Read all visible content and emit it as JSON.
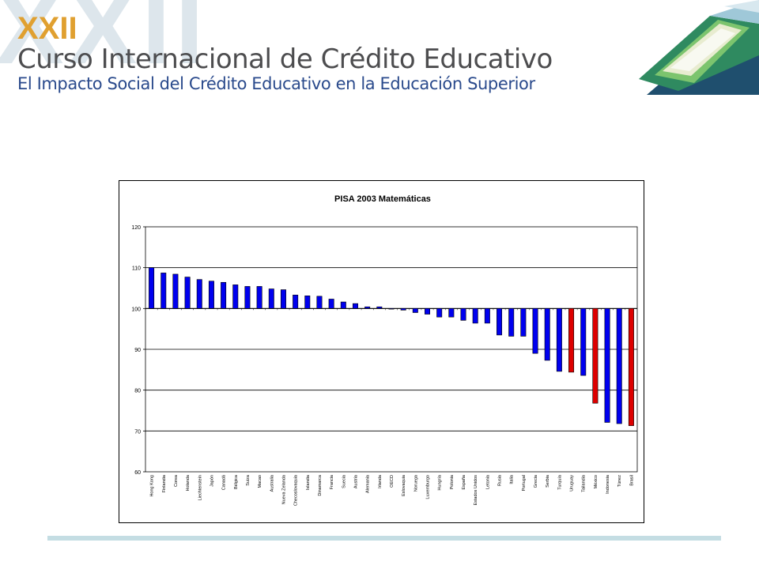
{
  "header": {
    "numeral": "XXII",
    "line1": "Curso Internacional de Crédito Educativo",
    "line2": "El Impacto Social del Crédito Educativo en la Educación Superior"
  },
  "colors": {
    "bar_default": "#0000ee",
    "bar_highlight": "#dd0000",
    "numeral": "#e0a030",
    "title": "#4d4d4f",
    "subtitle": "#2a4a8c"
  },
  "icons": {
    "logo": "book-pages-logo"
  },
  "chart_data": {
    "type": "bar",
    "title": "PISA 2003 Matemáticas",
    "xlabel": "",
    "ylabel": "",
    "ylim": [
      60,
      120
    ],
    "yticks": [
      60,
      70,
      80,
      90,
      100,
      110,
      120
    ],
    "baseline": 100,
    "grid": true,
    "legend": "none",
    "categories": [
      "Hong Kong",
      "Finlandia",
      "Corea",
      "Holanda",
      "Liechtenstein",
      "Japón",
      "Canadá",
      "Bélgica",
      "Suiza",
      "Macao",
      "Australia",
      "Nueva Zelanda",
      "Checoslovaquia",
      "Islandia",
      "Dinamarca",
      "Francia",
      "Suecia",
      "Austria",
      "Alemania",
      "Irlanda",
      "OECD",
      "Eslovaquia",
      "Noruega",
      "Luxemburgo",
      "Hungría",
      "Polonia",
      "España",
      "Estados Unidos",
      "Letonia",
      "Rusia",
      "Italia",
      "Portugal",
      "Grecia",
      "Serbia",
      "Turquía",
      "Uruguay",
      "Tailandia",
      "México",
      "Indonesia",
      "Túnez",
      "Brasil"
    ],
    "values": [
      110,
      108.7,
      108.4,
      107.7,
      107.1,
      106.7,
      106.4,
      105.8,
      105.4,
      105.4,
      104.8,
      104.6,
      103.3,
      103.1,
      103,
      102.3,
      101.6,
      101.2,
      100.4,
      100.4,
      100,
      99.6,
      99,
      98.6,
      97.9,
      97.9,
      97.1,
      96.4,
      96.4,
      93.5,
      93.2,
      93.2,
      89,
      87.3,
      84.6,
      84.4,
      83.6,
      76.8,
      72.1,
      71.8,
      71.3
    ],
    "highlighted": [
      "Uruguay",
      "México",
      "Brasil"
    ]
  }
}
